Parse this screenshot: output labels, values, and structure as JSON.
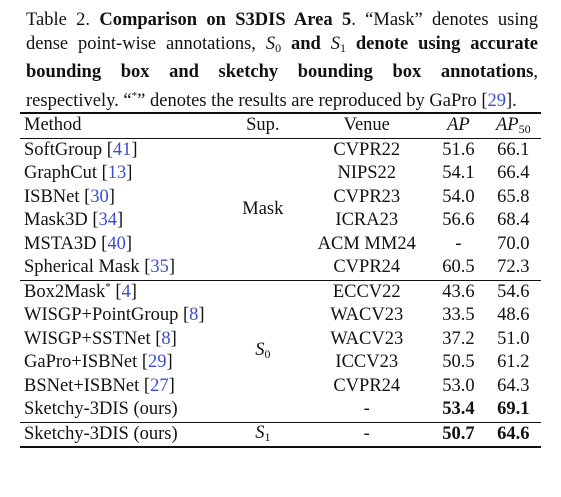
{
  "caption": {
    "prefix": "Table 2. ",
    "title_bold": "Comparison on S3DIS Area 5",
    "part1": ". “Mask” denotes using dense point-wise annotations, ",
    "s0_base": "S",
    "s0_sub": "0",
    "and_bold": " and ",
    "s1_base": "S",
    "s1_sub": "1",
    "bold_tail": " denote using accurate bounding box and sketchy bounding box annotations",
    "part2": ", respectively. “",
    "star": "*",
    "part3": "” denotes the results are reproduced by GaPro [",
    "cite": "29",
    "part4": "]."
  },
  "table": {
    "headers": {
      "method": "Method",
      "sup": "Sup.",
      "venue": "Venue",
      "ap": "AP",
      "ap50_base": "AP",
      "ap50_sub": "50"
    },
    "group_mask": {
      "sup_label": "Mask",
      "rows": [
        {
          "name": "SoftGroup [",
          "cite": "41",
          "close": "]",
          "venue": "CVPR22",
          "ap": "51.6",
          "ap50": "66.1"
        },
        {
          "name": "GraphCut [",
          "cite": "13",
          "close": "]",
          "venue": "NIPS22",
          "ap": "54.1",
          "ap50": "66.4"
        },
        {
          "name": "ISBNet [",
          "cite": "30",
          "close": "]",
          "venue": "CVPR23",
          "ap": "54.0",
          "ap50": "65.8"
        },
        {
          "name": "Mask3D [",
          "cite": "34",
          "close": "]",
          "venue": "ICRA23",
          "ap": "56.6",
          "ap50": "68.4"
        },
        {
          "name": "MSTA3D [",
          "cite": "40",
          "close": "]",
          "venue": "ACM MM24",
          "ap": "-",
          "ap50": "70.0"
        },
        {
          "name": "Spherical Mask [",
          "cite": "35",
          "close": "]",
          "venue": "CVPR24",
          "ap": "60.5",
          "ap50": "72.3"
        }
      ]
    },
    "group_s0": {
      "sup_base": "S",
      "sup_sub": "0",
      "rows": [
        {
          "name": "Box2Mask",
          "star": "*",
          "name2": " [",
          "cite": "4",
          "close": "]",
          "venue": "ECCV22",
          "ap": "43.6",
          "ap50": "54.6"
        },
        {
          "name": "WISGP+PointGroup [",
          "cite": "8",
          "close": "]",
          "venue": "WACV23",
          "ap": "33.5",
          "ap50": "48.6"
        },
        {
          "name": "WISGP+SSTNet [",
          "cite": "8",
          "close": "]",
          "venue": "WACV23",
          "ap": "37.2",
          "ap50": "51.0"
        },
        {
          "name": "GaPro+ISBNet [",
          "cite": "29",
          "close": "]",
          "venue": "ICCV23",
          "ap": "50.5",
          "ap50": "61.2"
        },
        {
          "name": "BSNet+ISBNet [",
          "cite": "27",
          "close": "]",
          "venue": "CVPR24",
          "ap": "53.0",
          "ap50": "64.3"
        },
        {
          "name": "Sketchy-3DIS (ours)",
          "venue": "-",
          "ap": "53.4",
          "ap50": "69.1"
        }
      ]
    },
    "group_s1": {
      "sup_base": "S",
      "sup_sub": "1",
      "rows": [
        {
          "name": "Sketchy-3DIS (ours)",
          "venue": "-",
          "ap": "50.7",
          "ap50": "64.6"
        }
      ]
    }
  }
}
